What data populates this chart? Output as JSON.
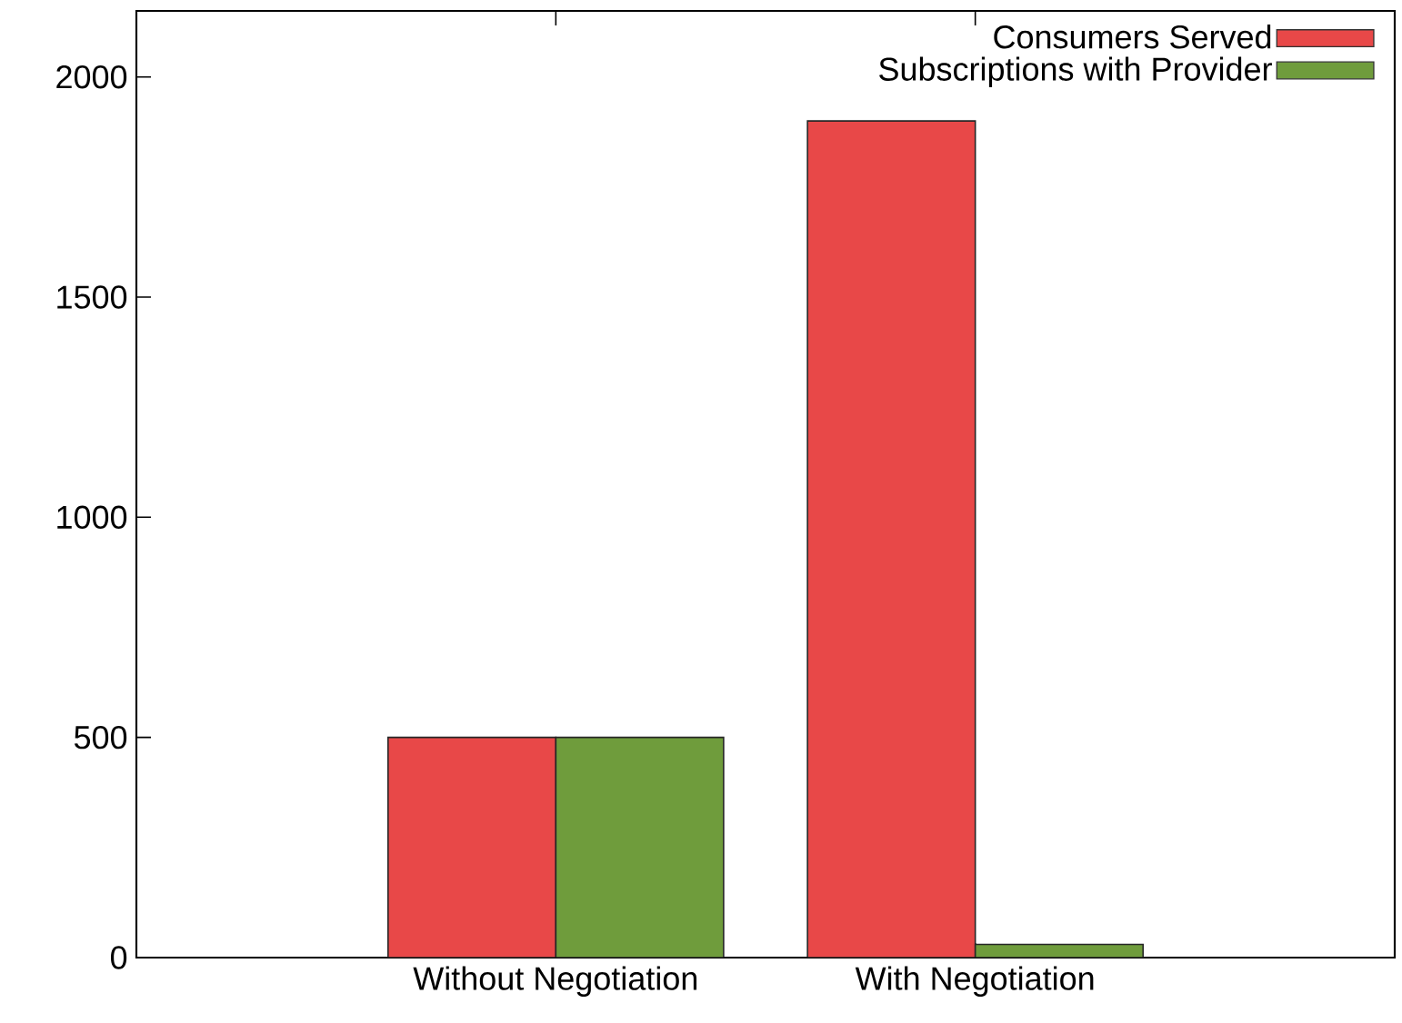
{
  "chart_data": {
    "type": "bar",
    "categories": [
      "Without Negotiation",
      "With Negotiation"
    ],
    "series": [
      {
        "name": "Consumers Served",
        "color": "#e84848",
        "values": [
          500,
          1900
        ]
      },
      {
        "name": "Subscriptions with Provider",
        "color": "#6f9c3c",
        "values": [
          500,
          30
        ]
      }
    ],
    "ylim": [
      0,
      2150
    ],
    "yticks": [
      0,
      500,
      1000,
      1500,
      2000
    ],
    "legend": "top right"
  }
}
